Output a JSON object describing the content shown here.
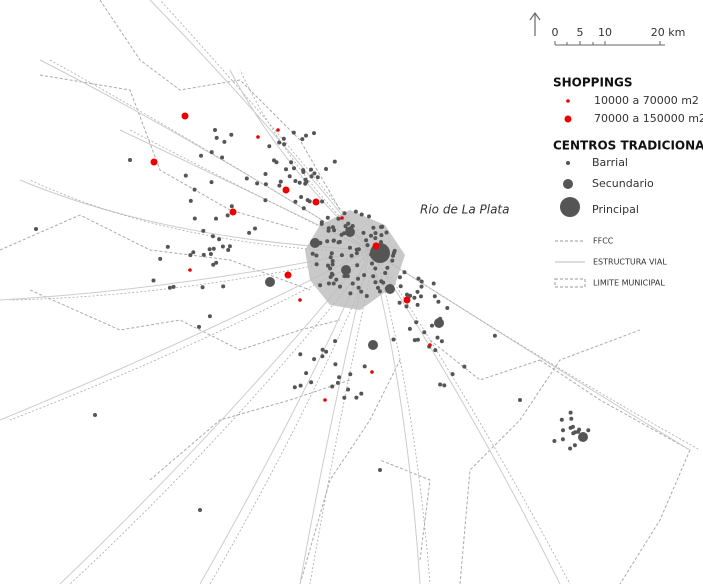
{
  "scale": {
    "labels": [
      "0",
      "5",
      "10",
      "20 km"
    ]
  },
  "water_label": "Rio de La Plata",
  "legend": {
    "shoppings": {
      "title": "SHOPPINGS",
      "items": [
        "10000 a 70000 m2",
        "70000 a 150000 m2"
      ]
    },
    "centros": {
      "title": "CENTROS TRADICIONALES",
      "items": [
        "Barrial",
        "Secundario",
        "Principal"
      ]
    },
    "lines": [
      "FFCC",
      "ESTRUCTURA VIAL",
      "LIMITE MUNICIPAL"
    ]
  }
}
